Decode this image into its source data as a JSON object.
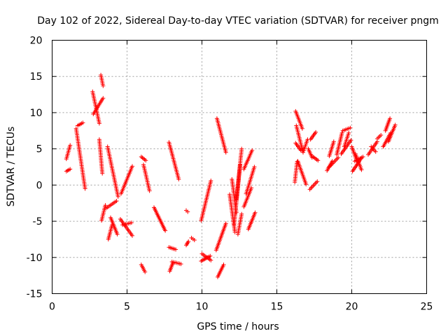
{
  "chart_data": {
    "type": "scatter",
    "title": "Day 102 of 2022, Sidereal Day-to-day VTEC variation (SDTVAR) for receiver pngm",
    "xlabel": "GPS time / hours",
    "ylabel": "SDTVAR / TECUs",
    "xlim": [
      0,
      25
    ],
    "ylim": [
      -15,
      20
    ],
    "xticks": [
      0,
      5,
      10,
      15,
      20,
      25
    ],
    "yticks": [
      -15,
      -10,
      -5,
      0,
      5,
      10,
      15,
      20
    ],
    "xtick_labels": [
      "0",
      "5",
      "10",
      "15",
      "20",
      "25"
    ],
    "ytick_labels": [
      "-15",
      "-10",
      "-5",
      "0",
      "5",
      "10",
      "15",
      "20"
    ],
    "grid": true,
    "legend": "none",
    "marker": "plus",
    "color": "#ff0000",
    "segments": [
      {
        "x0": 0.95,
        "y0": 3.6,
        "x1": 1.2,
        "y1": 5.5
      },
      {
        "x0": 0.95,
        "y0": 1.9,
        "x1": 1.2,
        "y1": 2.2
      },
      {
        "x0": 1.6,
        "y0": 7.8,
        "x1": 2.2,
        "y1": -0.5
      },
      {
        "x0": 1.7,
        "y0": 8.2,
        "x1": 2.05,
        "y1": 8.6
      },
      {
        "x0": 2.7,
        "y0": 12.9,
        "x1": 3.15,
        "y1": 8.5
      },
      {
        "x0": 2.75,
        "y0": 9.8,
        "x1": 3.4,
        "y1": 12.0
      },
      {
        "x0": 3.15,
        "y0": 6.3,
        "x1": 3.35,
        "y1": 1.6
      },
      {
        "x0": 3.25,
        "y0": 15.2,
        "x1": 3.4,
        "y1": 13.7
      },
      {
        "x0": 3.3,
        "y0": -4.9,
        "x1": 3.55,
        "y1": -2.8
      },
      {
        "x0": 3.7,
        "y0": 5.3,
        "x1": 4.4,
        "y1": -1.6
      },
      {
        "x0": 3.75,
        "y0": -7.5,
        "x1": 4.0,
        "y1": -5.5
      },
      {
        "x0": 3.6,
        "y0": -3.2,
        "x1": 4.3,
        "y1": -2.2
      },
      {
        "x0": 3.9,
        "y0": -4.5,
        "x1": 4.35,
        "y1": -6.8
      },
      {
        "x0": 4.6,
        "y0": -1.2,
        "x1": 5.35,
        "y1": 2.6
      },
      {
        "x0": 4.55,
        "y0": -4.7,
        "x1": 5.35,
        "y1": -7.0
      },
      {
        "x0": 4.7,
        "y0": -5.5,
        "x1": 5.3,
        "y1": -5.2
      },
      {
        "x0": 5.95,
        "y0": -11.0,
        "x1": 6.2,
        "y1": -12.0
      },
      {
        "x0": 5.95,
        "y0": 3.9,
        "x1": 6.25,
        "y1": 3.4
      },
      {
        "x0": 6.1,
        "y0": 2.8,
        "x1": 6.5,
        "y1": -0.8
      },
      {
        "x0": 6.8,
        "y0": -3.1,
        "x1": 7.55,
        "y1": -6.3
      },
      {
        "x0": 7.8,
        "y0": 5.9,
        "x1": 8.45,
        "y1": 0.8
      },
      {
        "x0": 7.8,
        "y0": -8.6,
        "x1": 8.25,
        "y1": -8.9
      },
      {
        "x0": 7.85,
        "y0": -11.9,
        "x1": 8.05,
        "y1": -10.8
      },
      {
        "x0": 8.0,
        "y0": -10.6,
        "x1": 8.6,
        "y1": -10.9
      },
      {
        "x0": 8.95,
        "y0": -3.5,
        "x1": 9.05,
        "y1": -3.7
      },
      {
        "x0": 8.95,
        "y0": -8.3,
        "x1": 9.1,
        "y1": -7.8
      },
      {
        "x0": 9.3,
        "y0": -7.3,
        "x1": 9.5,
        "y1": -7.6
      },
      {
        "x0": 9.95,
        "y0": -4.9,
        "x1": 10.6,
        "y1": 0.6
      },
      {
        "x0": 10.0,
        "y0": -9.5,
        "x1": 10.6,
        "y1": -10.4
      },
      {
        "x0": 9.95,
        "y0": -10.5,
        "x1": 10.55,
        "y1": -9.8
      },
      {
        "x0": 11.0,
        "y0": 9.2,
        "x1": 11.6,
        "y1": 4.5
      },
      {
        "x0": 11.05,
        "y0": -12.7,
        "x1": 11.45,
        "y1": -11.0
      },
      {
        "x0": 10.95,
        "y0": -9.0,
        "x1": 11.6,
        "y1": -5.3
      },
      {
        "x0": 11.85,
        "y0": -1.3,
        "x1": 12.2,
        "y1": -6.5
      },
      {
        "x0": 12.0,
        "y0": 0.8,
        "x1": 12.3,
        "y1": -3.8
      },
      {
        "x0": 12.15,
        "y0": -5.5,
        "x1": 12.55,
        "y1": 2.8
      },
      {
        "x0": 12.3,
        "y0": -2.0,
        "x1": 12.65,
        "y1": 5.0
      },
      {
        "x0": 12.4,
        "y0": -6.8,
        "x1": 12.65,
        "y1": -4.0
      },
      {
        "x0": 12.8,
        "y0": 2.2,
        "x1": 13.35,
        "y1": 4.8
      },
      {
        "x0": 12.8,
        "y0": -3.0,
        "x1": 13.3,
        "y1": -0.4
      },
      {
        "x0": 12.95,
        "y0": -1.2,
        "x1": 13.5,
        "y1": 2.5
      },
      {
        "x0": 13.1,
        "y0": -6.1,
        "x1": 13.55,
        "y1": -3.8
      },
      {
        "x0": 16.2,
        "y0": 0.4,
        "x1": 16.35,
        "y1": 3.2
      },
      {
        "x0": 16.25,
        "y0": 10.2,
        "x1": 16.7,
        "y1": 7.8
      },
      {
        "x0": 16.3,
        "y0": 8.2,
        "x1": 16.75,
        "y1": 4.5
      },
      {
        "x0": 16.25,
        "y0": 5.8,
        "x1": 16.6,
        "y1": 4.8
      },
      {
        "x0": 16.4,
        "y0": 3.3,
        "x1": 16.95,
        "y1": 0.1
      },
      {
        "x0": 16.8,
        "y0": 4.8,
        "x1": 17.05,
        "y1": 6.3
      },
      {
        "x0": 17.1,
        "y0": 5.0,
        "x1": 17.35,
        "y1": 3.8
      },
      {
        "x0": 17.2,
        "y0": -0.6,
        "x1": 17.7,
        "y1": 0.5
      },
      {
        "x0": 17.25,
        "y0": 6.3,
        "x1": 17.6,
        "y1": 7.3
      },
      {
        "x0": 17.35,
        "y0": 4.0,
        "x1": 17.75,
        "y1": 3.4
      },
      {
        "x0": 18.35,
        "y0": 2.0,
        "x1": 18.7,
        "y1": 3.3
      },
      {
        "x0": 18.5,
        "y0": 4.0,
        "x1": 18.8,
        "y1": 6.0
      },
      {
        "x0": 18.5,
        "y0": 2.5,
        "x1": 19.1,
        "y1": 3.8
      },
      {
        "x0": 19.0,
        "y0": 4.2,
        "x1": 19.35,
        "y1": 7.2
      },
      {
        "x0": 19.4,
        "y0": 7.5,
        "x1": 19.9,
        "y1": 7.9
      },
      {
        "x0": 19.3,
        "y0": 4.3,
        "x1": 19.95,
        "y1": 6.2
      },
      {
        "x0": 19.5,
        "y0": 5.3,
        "x1": 19.8,
        "y1": 7.2
      },
      {
        "x0": 20.0,
        "y0": 5.3,
        "x1": 20.35,
        "y1": 3.3
      },
      {
        "x0": 20.05,
        "y0": 1.9,
        "x1": 20.6,
        "y1": 3.6
      },
      {
        "x0": 20.2,
        "y0": 3.3,
        "x1": 20.75,
        "y1": 3.9
      },
      {
        "x0": 20.25,
        "y0": 4.3,
        "x1": 20.65,
        "y1": 2.1
      },
      {
        "x0": 21.1,
        "y0": 4.2,
        "x1": 21.7,
        "y1": 6.0
      },
      {
        "x0": 21.3,
        "y0": 5.3,
        "x1": 21.6,
        "y1": 4.6
      },
      {
        "x0": 21.7,
        "y0": 6.4,
        "x1": 21.95,
        "y1": 6.9
      },
      {
        "x0": 22.1,
        "y0": 5.3,
        "x1": 22.6,
        "y1": 7.2
      },
      {
        "x0": 22.25,
        "y0": 7.5,
        "x1": 22.55,
        "y1": 9.2
      },
      {
        "x0": 22.45,
        "y0": 6.0,
        "x1": 22.9,
        "y1": 8.3
      }
    ]
  }
}
